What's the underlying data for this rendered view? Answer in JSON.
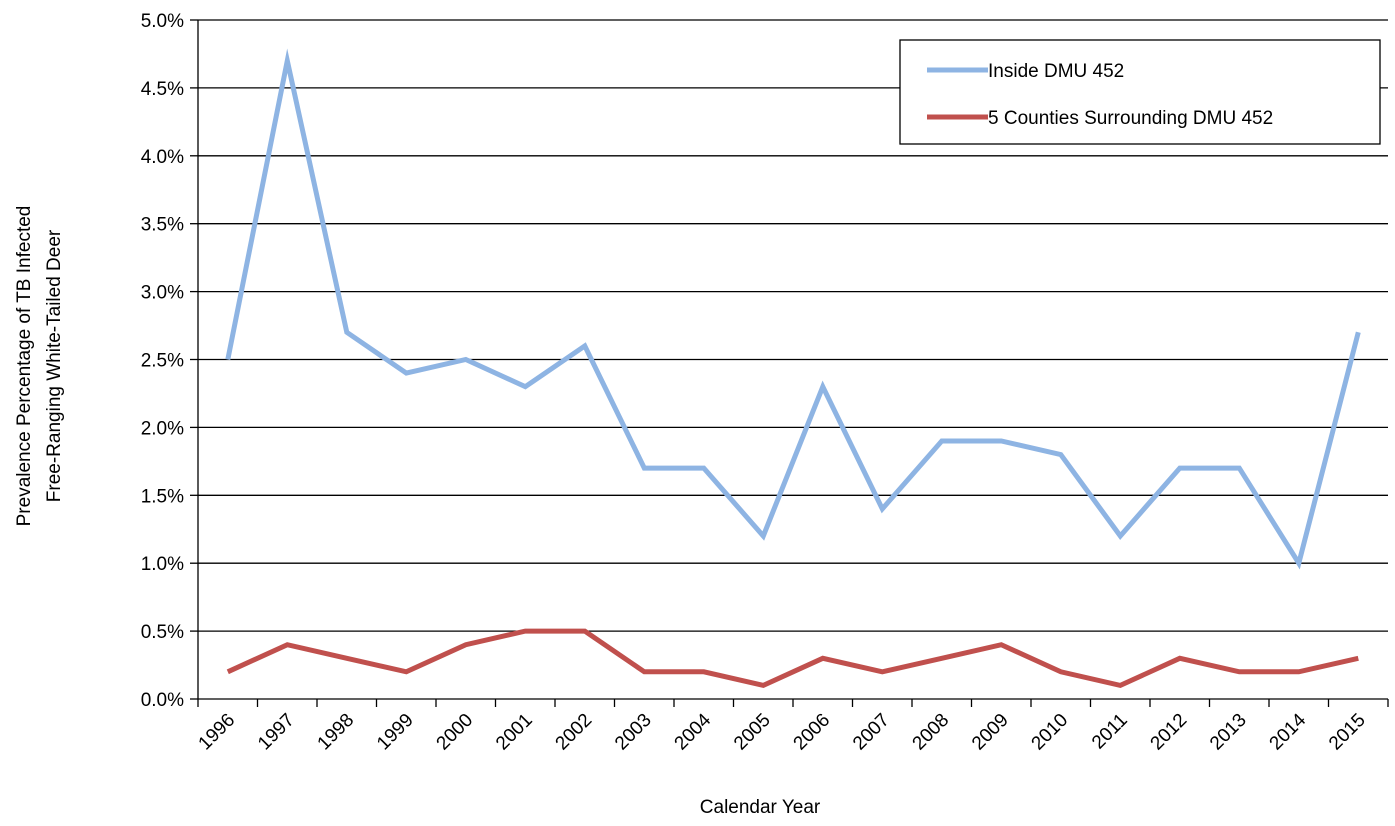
{
  "chart_data": {
    "type": "line",
    "title": "",
    "xlabel": "Calendar Year",
    "ylabel_lines": [
      "Prevalence Percentage of TB Infected",
      "Free-Ranging White-Tailed Deer"
    ],
    "x": [
      "1996",
      "1997",
      "1998",
      "1999",
      "2000",
      "2001",
      "2002",
      "2003",
      "2004",
      "2005",
      "2006",
      "2007",
      "2008",
      "2009",
      "2010",
      "2011",
      "2012",
      "2013",
      "2014",
      "2015"
    ],
    "ylim": [
      0,
      5.0
    ],
    "yticks": [
      "0.0%",
      "0.5%",
      "1.0%",
      "1.5%",
      "2.0%",
      "2.5%",
      "3.0%",
      "3.5%",
      "4.0%",
      "4.5%",
      "5.0%"
    ],
    "grid": true,
    "legend_position": "top-right",
    "series": [
      {
        "name": "Inside DMU 452",
        "color": "#8EB4E3",
        "values": [
          2.5,
          4.7,
          2.7,
          2.4,
          2.5,
          2.3,
          2.6,
          1.7,
          1.7,
          1.2,
          2.3,
          1.4,
          1.9,
          1.9,
          1.8,
          1.2,
          1.7,
          1.7,
          1.0,
          2.7
        ]
      },
      {
        "name": "5 Counties Surrounding DMU 452",
        "color": "#C0504D",
        "values": [
          0.2,
          0.4,
          0.3,
          0.2,
          0.4,
          0.5,
          0.5,
          0.2,
          0.2,
          0.1,
          0.3,
          0.2,
          0.3,
          0.4,
          0.2,
          0.1,
          0.3,
          0.2,
          0.2,
          0.3
        ]
      }
    ]
  }
}
